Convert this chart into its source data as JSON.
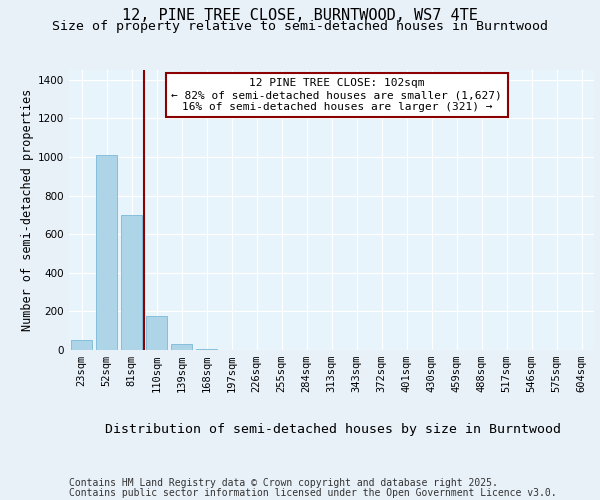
{
  "title": "12, PINE TREE CLOSE, BURNTWOOD, WS7 4TE",
  "subtitle": "Size of property relative to semi-detached houses in Burntwood",
  "xlabel": "Distribution of semi-detached houses by size in Burntwood",
  "ylabel": "Number of semi-detached properties",
  "categories": [
    "23sqm",
    "52sqm",
    "81sqm",
    "110sqm",
    "139sqm",
    "168sqm",
    "197sqm",
    "226sqm",
    "255sqm",
    "284sqm",
    "313sqm",
    "343sqm",
    "372sqm",
    "401sqm",
    "430sqm",
    "459sqm",
    "488sqm",
    "517sqm",
    "546sqm",
    "575sqm",
    "604sqm"
  ],
  "values": [
    50,
    1010,
    700,
    175,
    30,
    5,
    0,
    0,
    0,
    0,
    0,
    0,
    0,
    0,
    0,
    0,
    0,
    0,
    0,
    0,
    0
  ],
  "bar_color": "#aed4e8",
  "bar_edge_color": "#6ab0d4",
  "vline_position": 2.5,
  "vline_color": "#8b0000",
  "annotation_line1": "12 PINE TREE CLOSE: 102sqm",
  "annotation_line2": "← 82% of semi-detached houses are smaller (1,627)",
  "annotation_line3": "16% of semi-detached houses are larger (321) →",
  "annotation_box_color": "white",
  "annotation_box_edge_color": "#8b0000",
  "ylim": [
    0,
    1450
  ],
  "yticks": [
    0,
    200,
    400,
    600,
    800,
    1000,
    1200,
    1400
  ],
  "background_color": "#e8f0f8",
  "plot_background_color": "#e8f4fb",
  "footer_line1": "Contains HM Land Registry data © Crown copyright and database right 2025.",
  "footer_line2": "Contains public sector information licensed under the Open Government Licence v3.0.",
  "title_fontsize": 11,
  "subtitle_fontsize": 9.5,
  "xlabel_fontsize": 9.5,
  "ylabel_fontsize": 8.5,
  "tick_fontsize": 7.5,
  "annotation_fontsize": 8,
  "footer_fontsize": 7
}
